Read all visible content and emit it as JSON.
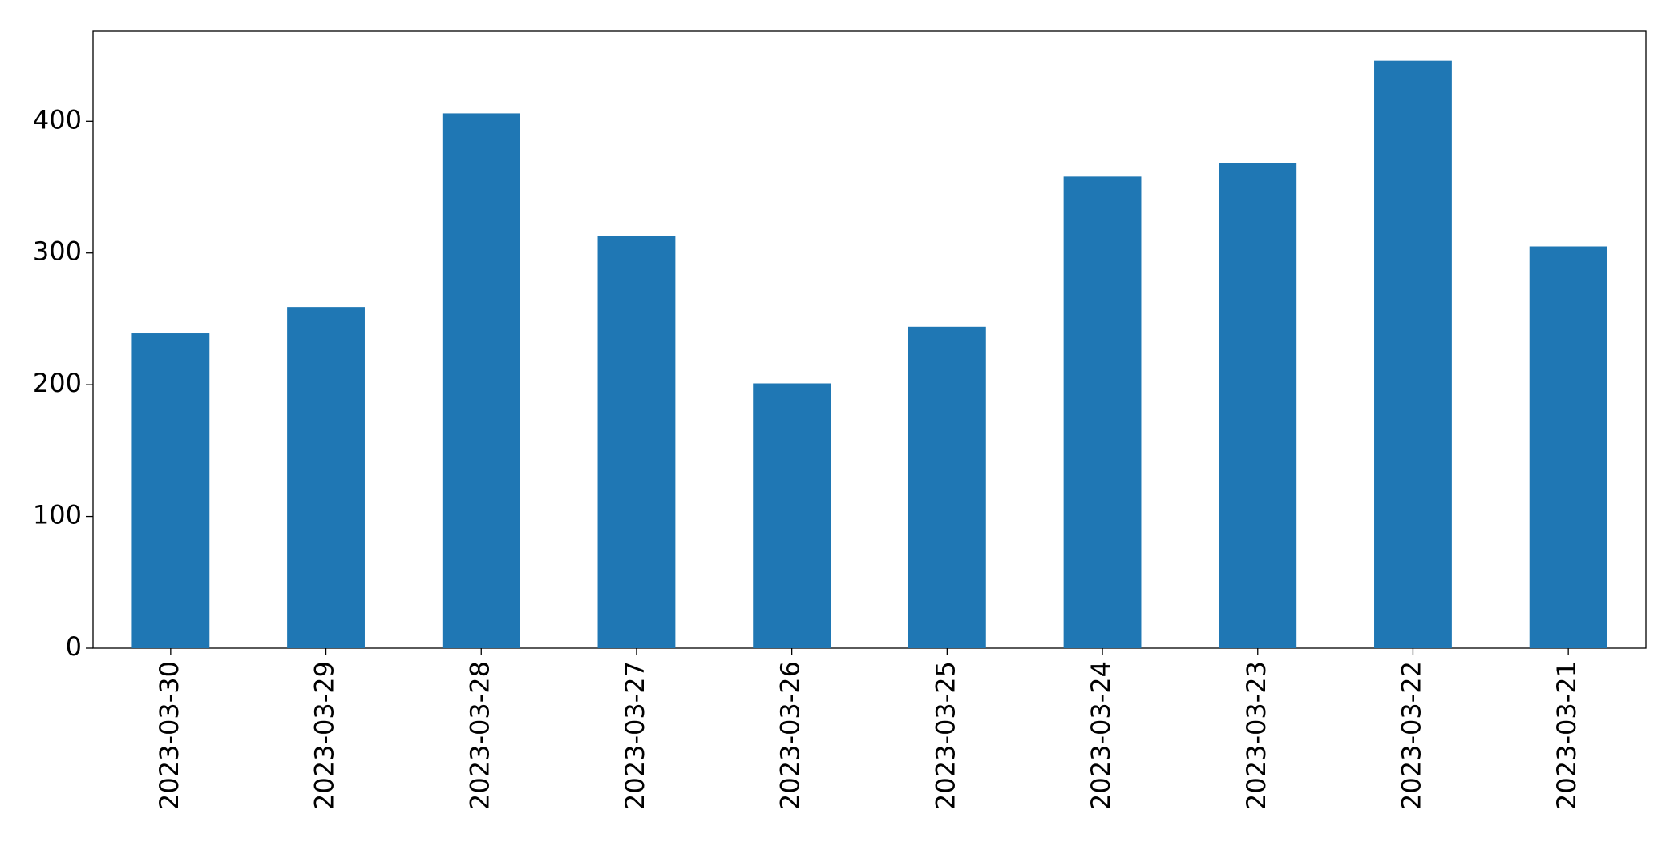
{
  "chart_data": {
    "type": "bar",
    "categories": [
      "2023-03-30",
      "2023-03-29",
      "2023-03-28",
      "2023-03-27",
      "2023-03-26",
      "2023-03-25",
      "2023-03-24",
      "2023-03-23",
      "2023-03-22",
      "2023-03-21"
    ],
    "values": [
      239,
      259,
      406,
      313,
      201,
      244,
      358,
      368,
      446,
      305
    ],
    "color": "#1f77b4",
    "ylim": [
      0,
      468.3
    ],
    "yticks": [
      0,
      100,
      200,
      300,
      400
    ],
    "grid": false
  }
}
